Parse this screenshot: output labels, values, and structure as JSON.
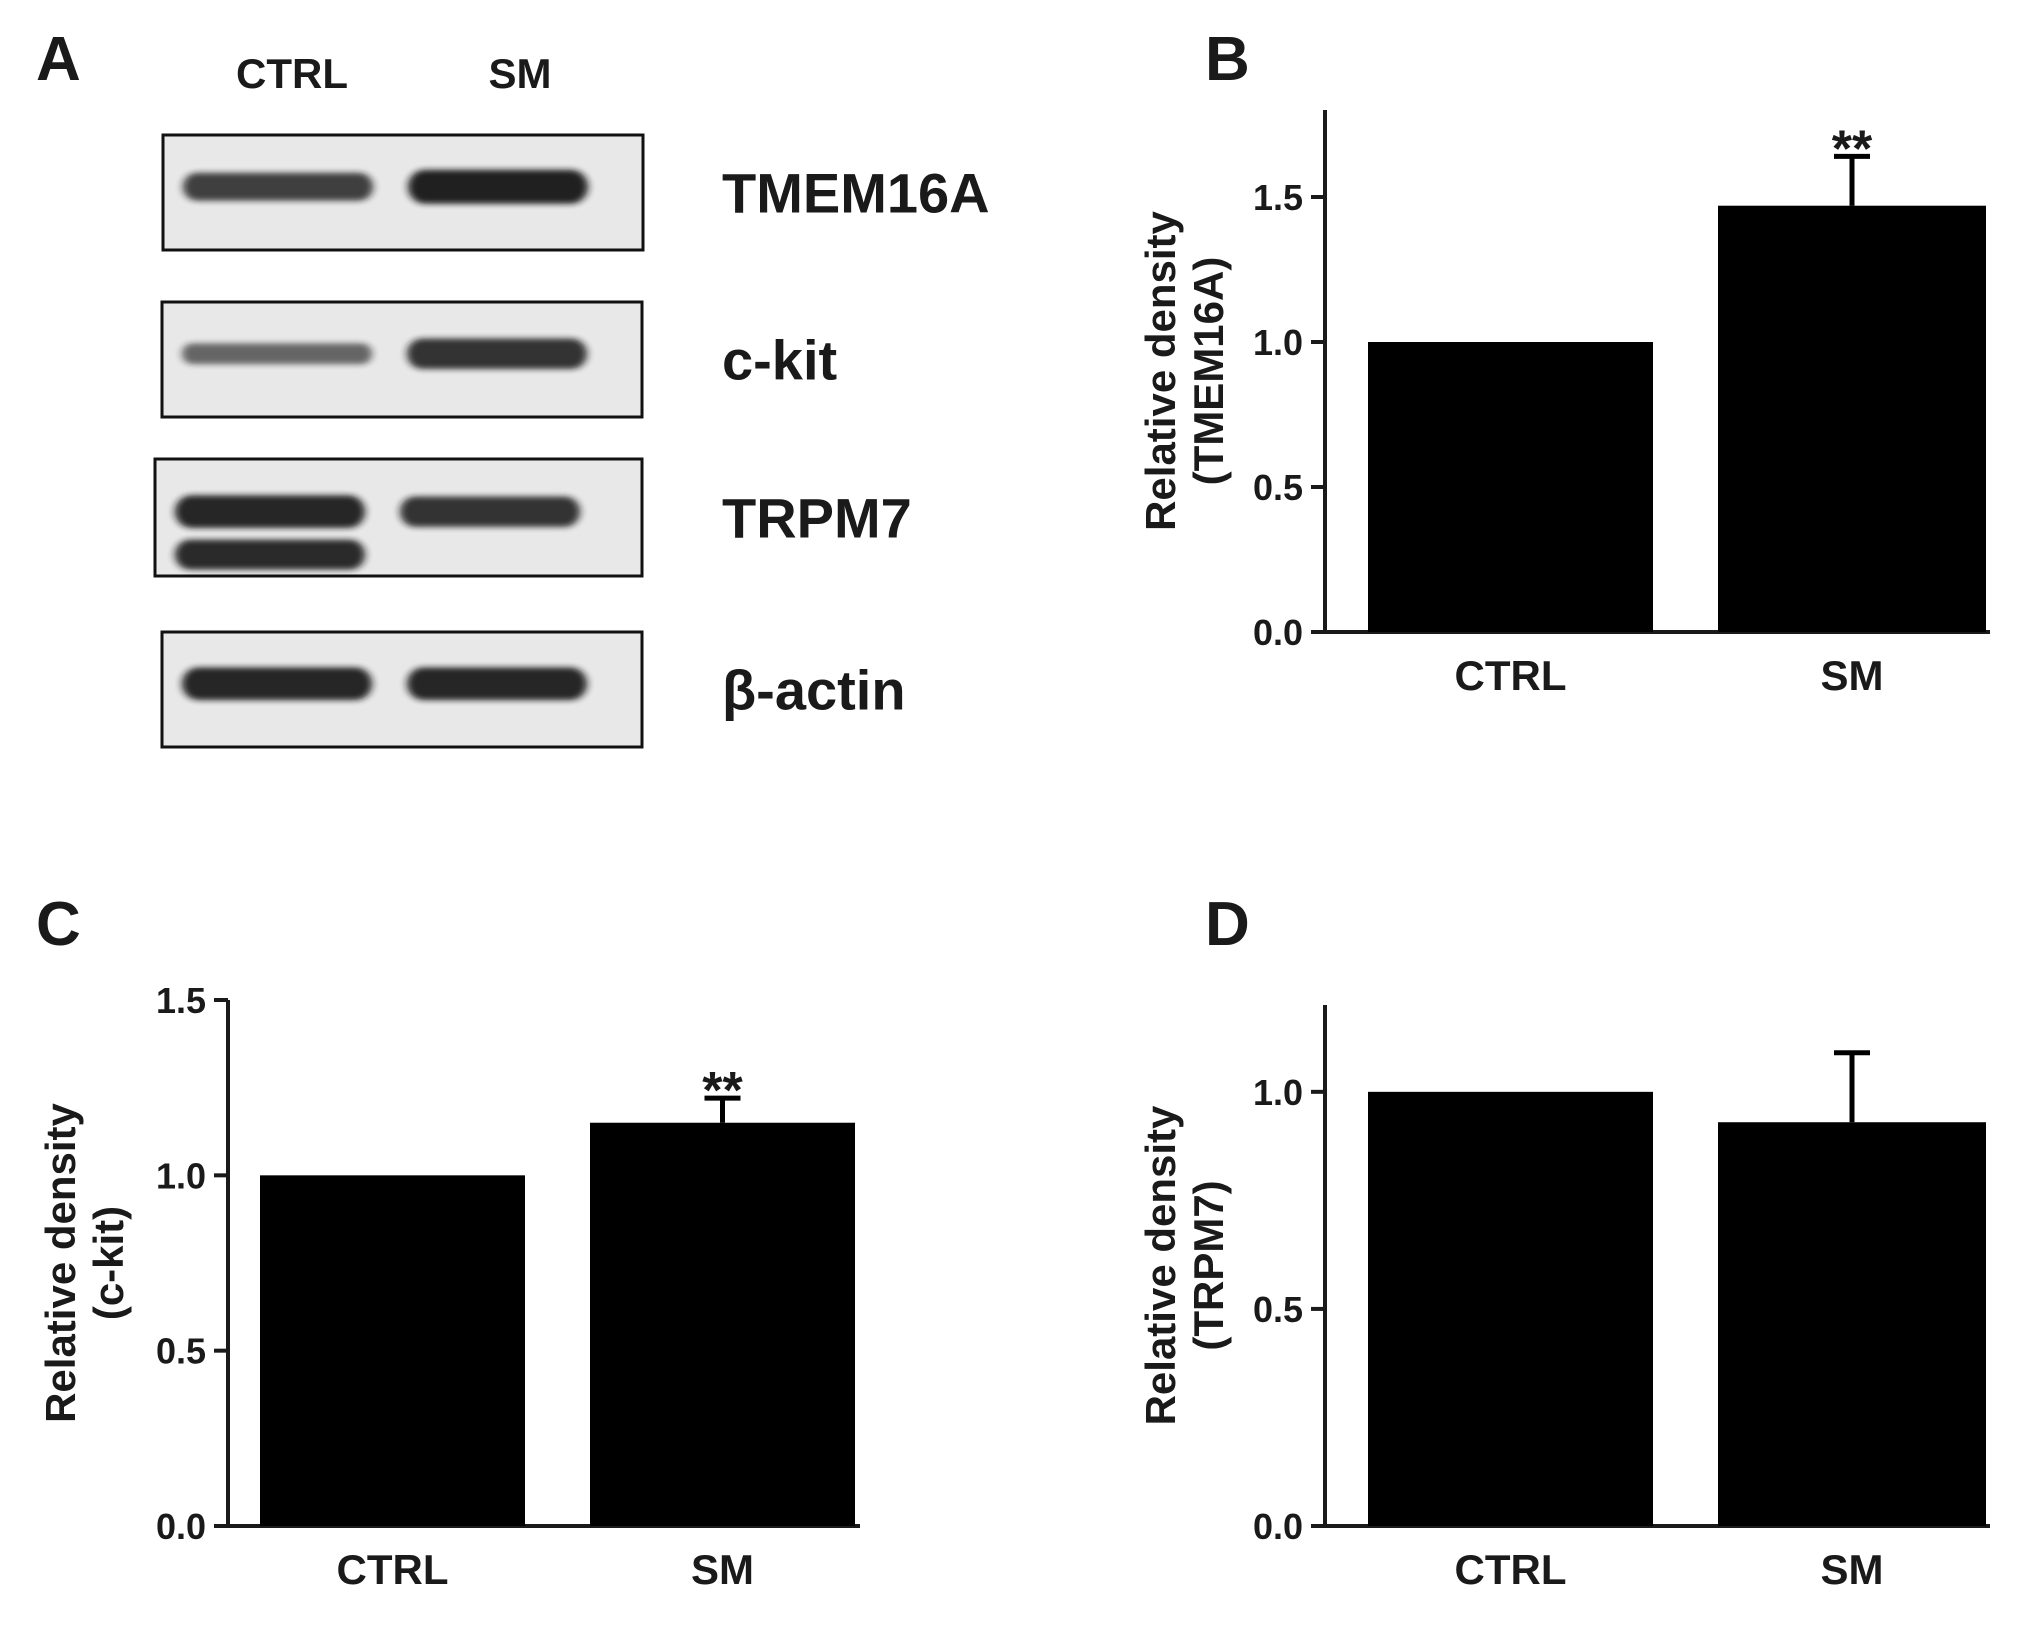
{
  "colors": {
    "bar": "#000000",
    "axis": "#1a1a1a",
    "blot_background": "#e8e8e8",
    "band": "#141414"
  },
  "panel_labels": [
    "A",
    "B",
    "C",
    "D"
  ],
  "blot": {
    "lane_labels": [
      "CTRL",
      "SM"
    ],
    "rows": [
      {
        "label": "TMEM16A",
        "ctrl_intensity": 0.75,
        "sm_intensity": 1.0
      },
      {
        "label": "c-kit",
        "ctrl_intensity": 0.45,
        "sm_intensity": 0.85
      },
      {
        "label": "TRPM7",
        "ctrl_intensity": 0.95,
        "sm_intensity": 0.85,
        "ctrl_has_doublet": true
      },
      {
        "label": "β-actin",
        "ctrl_intensity": 0.95,
        "sm_intensity": 0.95
      }
    ]
  },
  "chart_data": [
    {
      "panel": "B",
      "type": "bar",
      "categories": [
        "CTRL",
        "SM"
      ],
      "values": [
        1.0,
        1.47
      ],
      "errors": [
        0,
        0.17
      ],
      "significance": [
        "",
        "**"
      ],
      "ylabel_lines": [
        "Relative density",
        "(TMEM16A)"
      ],
      "ylim": [
        0,
        1.8
      ],
      "yticks": [
        "0.0",
        "0.5",
        "1.0",
        "1.5"
      ],
      "grid": false
    },
    {
      "panel": "C",
      "type": "bar",
      "categories": [
        "CTRL",
        "SM"
      ],
      "values": [
        1.0,
        1.15
      ],
      "errors": [
        0,
        0.07
      ],
      "significance": [
        "",
        "**"
      ],
      "ylabel_lines": [
        "Relative density",
        "(c-kit)"
      ],
      "ylim": [
        0,
        1.5
      ],
      "yticks": [
        "0.0",
        "0.5",
        "1.0",
        "1.5"
      ],
      "grid": false
    },
    {
      "panel": "D",
      "type": "bar",
      "categories": [
        "CTRL",
        "SM"
      ],
      "values": [
        1.0,
        0.93
      ],
      "errors": [
        0,
        0.16
      ],
      "significance": [
        "",
        ""
      ],
      "ylabel_lines": [
        "Relative density",
        "(TRPM7)"
      ],
      "ylim": [
        0,
        1.2
      ],
      "yticks": [
        "0.0",
        "0.5",
        "1.0"
      ],
      "grid": false
    }
  ]
}
